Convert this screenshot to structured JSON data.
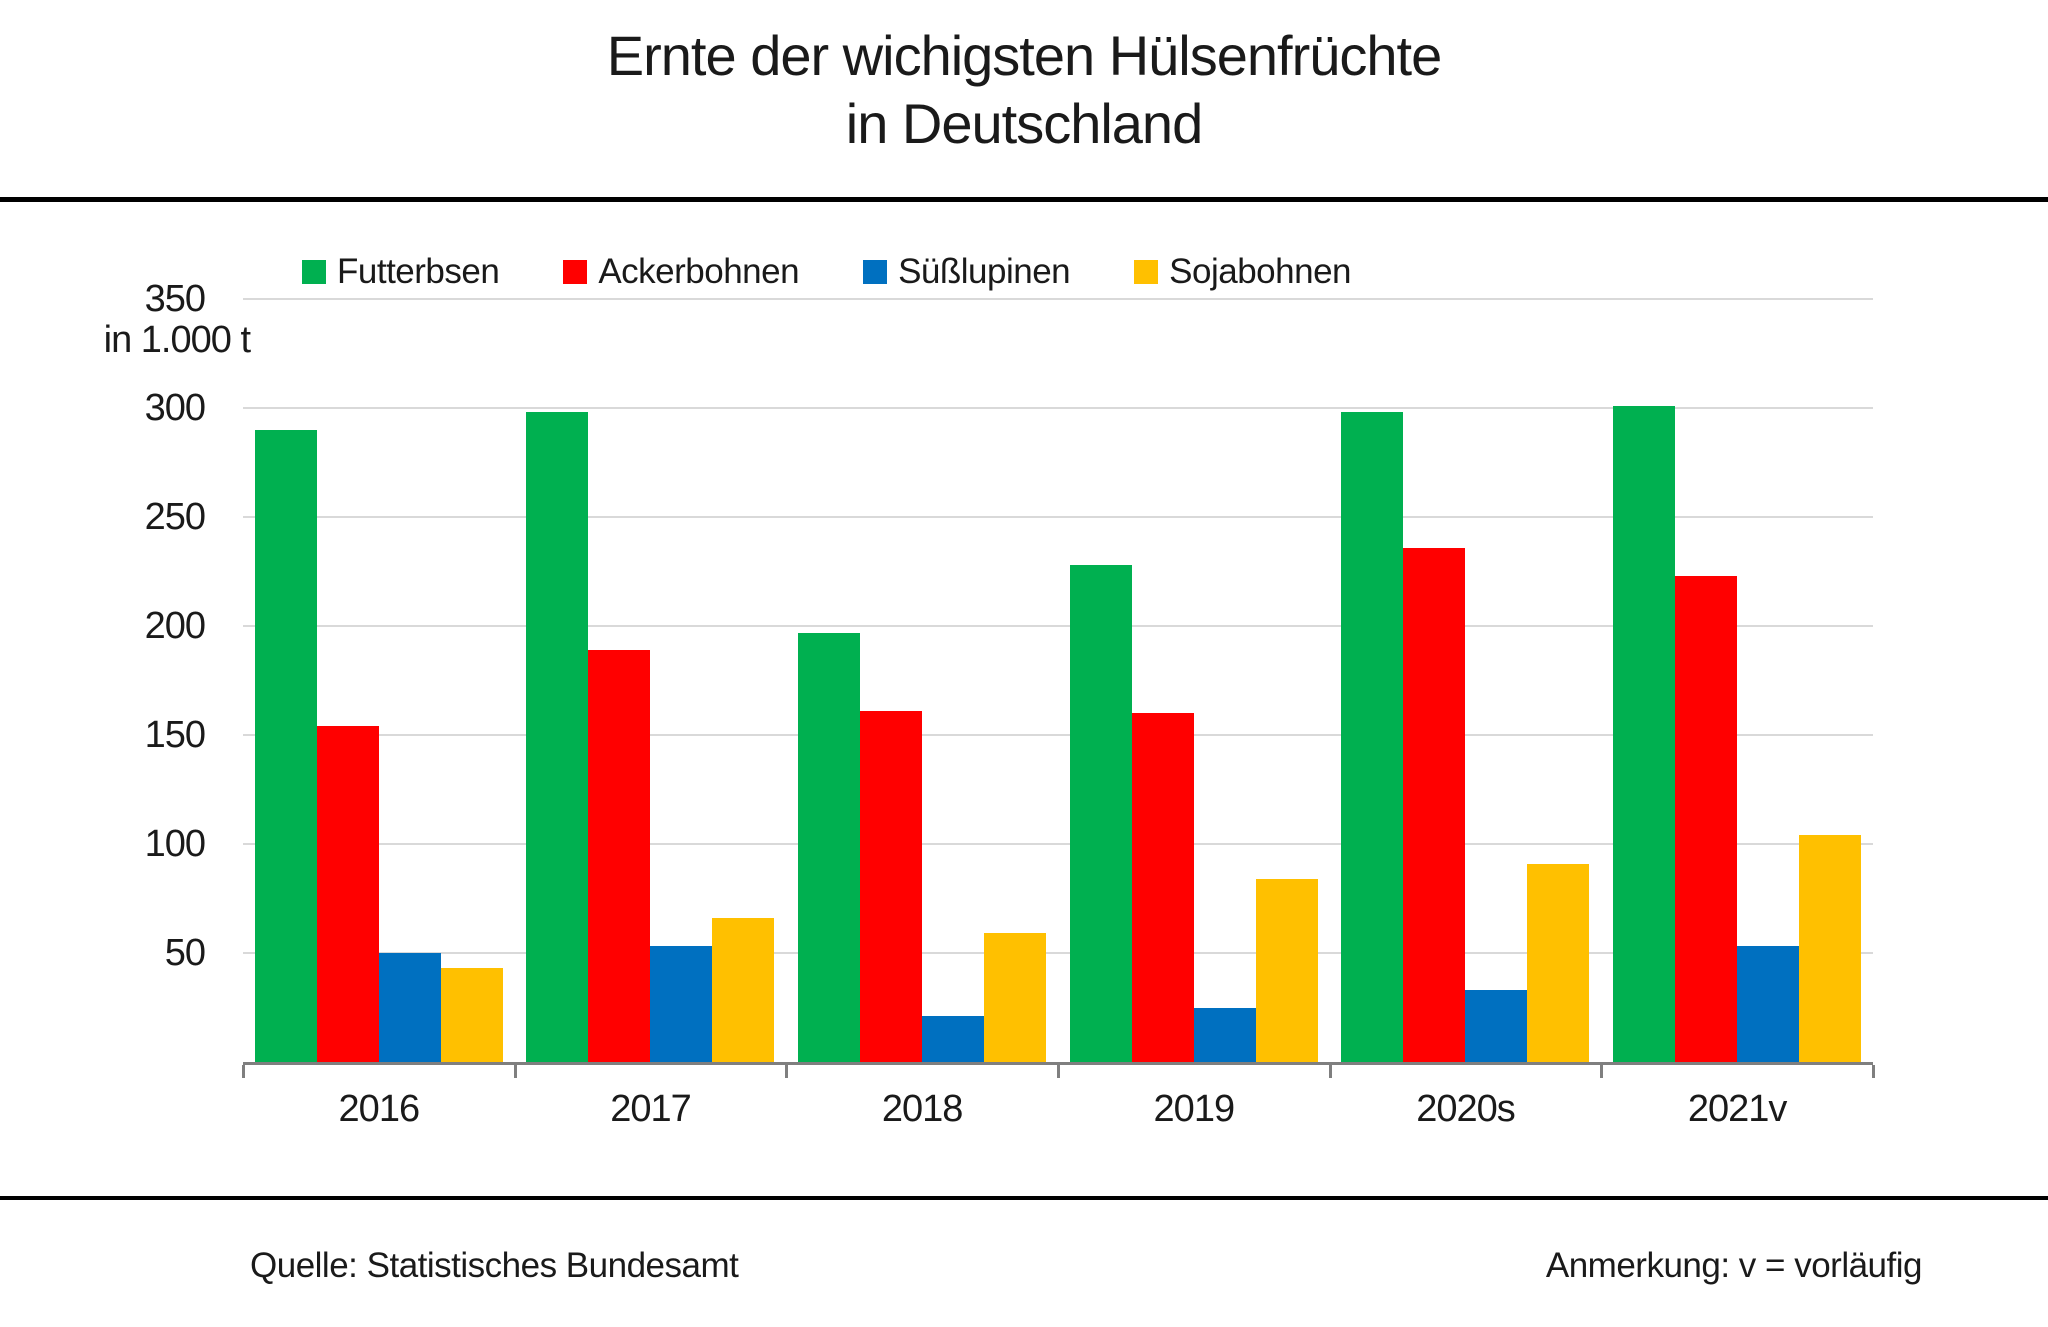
{
  "title": {
    "line1": "Ernte der wichigsten Hülsenfrüchte",
    "line2": "in Deutschland"
  },
  "y_axis": {
    "unit_label": "in 1.000 t",
    "ticks": [
      350,
      300,
      250,
      200,
      150,
      100,
      50
    ],
    "max": 350
  },
  "footer": {
    "source": "Quelle: Statistisches Bundesamt",
    "note": "Anmerkung: v = vorläufig"
  },
  "chart_data": {
    "type": "bar",
    "title": "Ernte der wichigsten Hülsenfrüchte in Deutschland",
    "ylabel": "in 1.000 t",
    "xlabel": "",
    "ylim": [
      0,
      350
    ],
    "grid": true,
    "legend_position": "top",
    "categories": [
      "2016",
      "2017",
      "2018",
      "2019",
      "2020s",
      "2021v"
    ],
    "series": [
      {
        "name": "Futterbsen",
        "color": "#00B050",
        "values": [
          290,
          298,
          197,
          228,
          298,
          301
        ]
      },
      {
        "name": "Ackerbohnen",
        "color": "#FF0000",
        "values": [
          154,
          189,
          161,
          160,
          236,
          223
        ]
      },
      {
        "name": "Süßlupinen",
        "color": "#0070C0",
        "values": [
          50,
          53,
          21,
          25,
          33,
          53
        ]
      },
      {
        "name": "Sojabohnen",
        "color": "#FFC000",
        "values": [
          43,
          66,
          59,
          84,
          91,
          104
        ]
      }
    ],
    "colors": {
      "gridline": "#d9d9d9",
      "axis_line": "#7f7f7f",
      "text": "#1a1a1a",
      "rule": "#000000"
    }
  }
}
